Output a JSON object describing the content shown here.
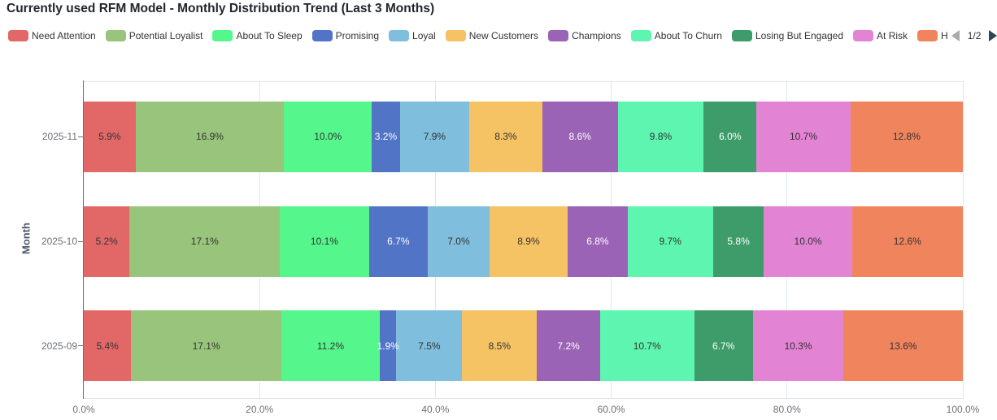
{
  "title": "Currently used RFM Model - Monthly Distribution Trend (Last 3 Months)",
  "legend": {
    "page_indicator": "1/2",
    "prev_enabled": false,
    "next_enabled": true
  },
  "chart_data": {
    "type": "bar",
    "orientation": "horizontal",
    "stacked": true,
    "categories": [
      "2025-11",
      "2025-10",
      "2025-09"
    ],
    "ylabel": "Month",
    "x_tick_labels": [
      "0.0%",
      "20.0%",
      "40.0%",
      "60.0%",
      "80.0%",
      "100.0%"
    ],
    "xlim": [
      0,
      100
    ],
    "value_suffix": "%",
    "series": [
      {
        "name": "Need Attention",
        "color": "#E26868",
        "values": [
          5.9,
          5.2,
          5.4
        ]
      },
      {
        "name": "Potential Loyalist",
        "color": "#98C47C",
        "values": [
          16.9,
          17.1,
          17.1
        ]
      },
      {
        "name": "About To Sleep",
        "color": "#55F68C",
        "values": [
          10.0,
          10.1,
          11.2
        ]
      },
      {
        "name": "Promising",
        "color": "#5274C7",
        "values": [
          3.2,
          6.7,
          1.9
        ]
      },
      {
        "name": "Loyal",
        "color": "#7FBEDC",
        "values": [
          7.9,
          7.0,
          7.5
        ]
      },
      {
        "name": "New Customers",
        "color": "#F5C364",
        "values": [
          8.3,
          8.9,
          8.5
        ]
      },
      {
        "name": "Champions",
        "color": "#9A63B5",
        "values": [
          8.6,
          6.8,
          7.2
        ]
      },
      {
        "name": "About To Churn",
        "color": "#5DF5B0",
        "values": [
          9.8,
          9.7,
          10.7
        ]
      },
      {
        "name": "Losing But Engaged",
        "color": "#3E9C6B",
        "values": [
          6.0,
          5.8,
          6.7
        ]
      },
      {
        "name": "At Risk",
        "color": "#E383D4",
        "values": [
          10.7,
          10.0,
          10.3
        ]
      },
      {
        "name": "H",
        "color": "#F0845C",
        "values": [
          12.8,
          12.6,
          13.6
        ]
      }
    ]
  }
}
